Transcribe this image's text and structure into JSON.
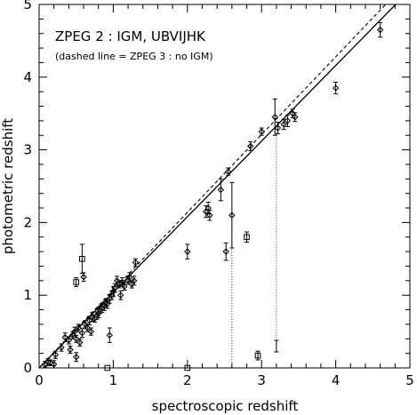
{
  "chart_data": {
    "type": "scatter",
    "title": "ZPEG 2 : IGM, UBVIJHK",
    "subtitle": "(dashed line = ZPEG 3 : no IGM)",
    "xlabel": "spectroscopic redshift",
    "ylabel": "photometric redshift",
    "xlim": [
      0,
      5
    ],
    "ylim": [
      0,
      5
    ],
    "xticks": [
      "0",
      "1",
      "2",
      "3",
      "4",
      "5"
    ],
    "yticks": [
      "0",
      "1",
      "2",
      "3",
      "4",
      "5"
    ],
    "grid": false,
    "lines": [
      {
        "style": "solid",
        "x": [
          0,
          5
        ],
        "y": [
          0,
          5.2
        ]
      },
      {
        "style": "dashed",
        "x": [
          0,
          5
        ],
        "y": [
          0,
          5.35
        ]
      }
    ],
    "dotted_links": [
      {
        "x": 2.6,
        "y": [
          0,
          2.1
        ]
      },
      {
        "x": 3.2,
        "y": [
          0.3,
          3.3
        ]
      }
    ],
    "diamonds": [
      [
        0.08,
        0.05,
        0.04
      ],
      [
        0.12,
        0.08,
        0.05
      ],
      [
        0.15,
        0.07,
        0.04
      ],
      [
        0.2,
        0.05,
        0.05
      ],
      [
        0.22,
        0.18,
        0.05
      ],
      [
        0.3,
        0.28,
        0.05
      ],
      [
        0.35,
        0.42,
        0.06
      ],
      [
        0.4,
        0.38,
        0.05
      ],
      [
        0.42,
        0.25,
        0.05
      ],
      [
        0.45,
        0.45,
        0.05
      ],
      [
        0.48,
        0.5,
        0.06
      ],
      [
        0.5,
        0.15,
        0.06
      ],
      [
        0.5,
        0.4,
        0.05
      ],
      [
        0.53,
        0.55,
        0.05
      ],
      [
        0.55,
        0.35,
        0.05
      ],
      [
        0.58,
        0.48,
        0.06
      ],
      [
        0.6,
        1.25,
        0.06
      ],
      [
        0.62,
        0.6,
        0.05
      ],
      [
        0.65,
        0.55,
        0.05
      ],
      [
        0.68,
        0.65,
        0.06
      ],
      [
        0.7,
        0.5,
        0.05
      ],
      [
        0.72,
        0.7,
        0.06
      ],
      [
        0.75,
        0.68,
        0.05
      ],
      [
        0.78,
        0.72,
        0.05
      ],
      [
        0.8,
        0.75,
        0.06
      ],
      [
        0.82,
        0.8,
        0.05
      ],
      [
        0.85,
        0.82,
        0.06
      ],
      [
        0.88,
        0.85,
        0.06
      ],
      [
        0.9,
        0.9,
        0.05
      ],
      [
        0.92,
        0.88,
        0.06
      ],
      [
        0.95,
        0.45,
        0.1
      ],
      [
        0.95,
        0.95,
        0.06
      ],
      [
        0.98,
        1.0,
        0.06
      ],
      [
        1.0,
        1.05,
        0.07
      ],
      [
        1.02,
        1.1,
        0.06
      ],
      [
        1.05,
        1.2,
        0.06
      ],
      [
        1.08,
        1.15,
        0.05
      ],
      [
        1.1,
        1.0,
        0.06
      ],
      [
        1.12,
        1.18,
        0.06
      ],
      [
        1.15,
        1.12,
        0.05
      ],
      [
        1.2,
        1.2,
        0.05
      ],
      [
        1.22,
        1.25,
        0.06
      ],
      [
        1.25,
        1.15,
        0.05
      ],
      [
        1.28,
        1.2,
        0.06
      ],
      [
        1.3,
        1.45,
        0.05
      ],
      [
        2.0,
        1.6,
        0.1
      ],
      [
        2.25,
        2.15,
        0.08
      ],
      [
        2.28,
        2.2,
        0.08
      ],
      [
        2.3,
        2.1,
        0.07
      ],
      [
        2.45,
        2.45,
        0.15
      ],
      [
        2.52,
        1.6,
        0.12
      ],
      [
        2.55,
        2.7,
        0.05
      ],
      [
        2.6,
        2.1,
        0.45
      ],
      [
        2.85,
        3.05,
        0.06
      ],
      [
        3.0,
        3.25,
        0.05
      ],
      [
        3.18,
        3.45,
        0.25
      ],
      [
        3.22,
        3.3,
        0.08
      ],
      [
        3.3,
        3.35,
        0.07
      ],
      [
        3.35,
        3.4,
        0.08
      ],
      [
        3.42,
        3.5,
        0.06
      ],
      [
        3.45,
        3.45,
        0.06
      ],
      [
        4.0,
        3.85,
        0.08
      ],
      [
        4.6,
        4.65,
        0.1
      ]
    ],
    "squares": [
      [
        0.5,
        1.18,
        0.06
      ],
      [
        0.58,
        1.5,
        0.2
      ],
      [
        2.8,
        1.8,
        0.07
      ],
      [
        2.95,
        0.17,
        0.06
      ],
      [
        0.92,
        -0.02,
        0.0
      ],
      [
        2.0,
        -0.02,
        0.0
      ]
    ],
    "bare_errorbars": [
      [
        3.2,
        0.3,
        0.08
      ]
    ]
  }
}
